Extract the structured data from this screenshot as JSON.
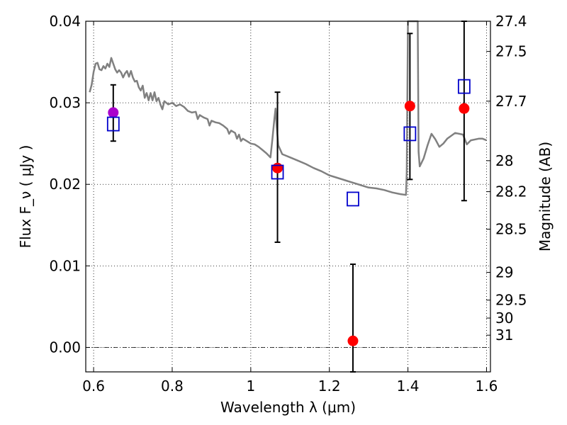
{
  "chart_data": {
    "type": "scatter",
    "title": "",
    "xlabel": "Wavelength  λ (μm)",
    "ylabel": "Flux  F_ν  ( μJy )",
    "y2label": "Magnitude (AB)",
    "xlim": [
      0.58,
      1.61
    ],
    "ylim": [
      -0.003,
      0.04
    ],
    "grid": true,
    "legend": "none",
    "x_ticks": [
      {
        "value": 0.6,
        "label": "0.6"
      },
      {
        "value": 0.8,
        "label": "0.8"
      },
      {
        "value": 1.0,
        "label": "1"
      },
      {
        "value": 1.2,
        "label": "1.2"
      },
      {
        "value": 1.4,
        "label": "1.4"
      },
      {
        "value": 1.6,
        "label": "1.6"
      }
    ],
    "y_ticks": [
      {
        "value": 0.0,
        "label": "0.00"
      },
      {
        "value": 0.01,
        "label": "0.01"
      },
      {
        "value": 0.02,
        "label": "0.02"
      },
      {
        "value": 0.03,
        "label": "0.03"
      },
      {
        "value": 0.04,
        "label": "0.04"
      }
    ],
    "magnitude_ticks": [
      {
        "flux": 0.04,
        "label": "27.4"
      },
      {
        "flux": 0.0363,
        "label": "27.5"
      },
      {
        "flux": 0.0302,
        "label": "27.7"
      },
      {
        "flux": 0.0229,
        "label": "28"
      },
      {
        "flux": 0.0191,
        "label": "28.2"
      },
      {
        "flux": 0.0145,
        "label": "28.5"
      },
      {
        "flux": 0.0092,
        "label": "29"
      },
      {
        "flux": 0.0058,
        "label": "29.5"
      },
      {
        "flux": 0.0036,
        "label": "30"
      },
      {
        "flux": 0.0015,
        "label": "31"
      }
    ],
    "zero_line": 0.0,
    "model_spectrum": {
      "color": "#808080",
      "points": [
        [
          0.59,
          0.0313
        ],
        [
          0.595,
          0.0322
        ],
        [
          0.6,
          0.0338
        ],
        [
          0.605,
          0.0348
        ],
        [
          0.61,
          0.0349
        ],
        [
          0.615,
          0.0341
        ],
        [
          0.62,
          0.034
        ],
        [
          0.625,
          0.0345
        ],
        [
          0.63,
          0.0342
        ],
        [
          0.635,
          0.0348
        ],
        [
          0.64,
          0.0344
        ],
        [
          0.645,
          0.0355
        ],
        [
          0.65,
          0.0348
        ],
        [
          0.655,
          0.0341
        ],
        [
          0.66,
          0.0337
        ],
        [
          0.665,
          0.034
        ],
        [
          0.67,
          0.0337
        ],
        [
          0.675,
          0.0331
        ],
        [
          0.68,
          0.0336
        ],
        [
          0.685,
          0.0339
        ],
        [
          0.69,
          0.0332
        ],
        [
          0.695,
          0.0339
        ],
        [
          0.7,
          0.0331
        ],
        [
          0.705,
          0.0326
        ],
        [
          0.71,
          0.0327
        ],
        [
          0.715,
          0.0319
        ],
        [
          0.72,
          0.0315
        ],
        [
          0.725,
          0.0321
        ],
        [
          0.73,
          0.0306
        ],
        [
          0.735,
          0.0312
        ],
        [
          0.74,
          0.0303
        ],
        [
          0.745,
          0.0312
        ],
        [
          0.75,
          0.0303
        ],
        [
          0.755,
          0.0313
        ],
        [
          0.76,
          0.0302
        ],
        [
          0.765,
          0.0306
        ],
        [
          0.77,
          0.0298
        ],
        [
          0.775,
          0.0292
        ],
        [
          0.78,
          0.0302
        ],
        [
          0.79,
          0.0298
        ],
        [
          0.8,
          0.03
        ],
        [
          0.81,
          0.0296
        ],
        [
          0.82,
          0.0298
        ],
        [
          0.83,
          0.0295
        ],
        [
          0.84,
          0.029
        ],
        [
          0.85,
          0.0288
        ],
        [
          0.86,
          0.0289
        ],
        [
          0.865,
          0.028
        ],
        [
          0.87,
          0.0285
        ],
        [
          0.88,
          0.0282
        ],
        [
          0.89,
          0.028
        ],
        [
          0.895,
          0.0272
        ],
        [
          0.9,
          0.0278
        ],
        [
          0.91,
          0.0276
        ],
        [
          0.92,
          0.0275
        ],
        [
          0.93,
          0.0272
        ],
        [
          0.94,
          0.0268
        ],
        [
          0.945,
          0.0262
        ],
        [
          0.95,
          0.0266
        ],
        [
          0.96,
          0.0263
        ],
        [
          0.965,
          0.0256
        ],
        [
          0.97,
          0.0261
        ],
        [
          0.975,
          0.0253
        ],
        [
          0.98,
          0.0256
        ],
        [
          0.99,
          0.0253
        ],
        [
          1.0,
          0.025
        ],
        [
          1.01,
          0.0249
        ],
        [
          1.02,
          0.0246
        ],
        [
          1.03,
          0.0242
        ],
        [
          1.04,
          0.0238
        ],
        [
          1.05,
          0.0233
        ],
        [
          1.055,
          0.0255
        ],
        [
          1.06,
          0.028
        ],
        [
          1.063,
          0.0293
        ],
        [
          1.066,
          0.0271
        ],
        [
          1.07,
          0.0248
        ],
        [
          1.08,
          0.0237
        ],
        [
          1.09,
          0.0235
        ],
        [
          1.1,
          0.0233
        ],
        [
          1.12,
          0.0229
        ],
        [
          1.14,
          0.0225
        ],
        [
          1.16,
          0.022
        ],
        [
          1.18,
          0.0216
        ],
        [
          1.2,
          0.0211
        ],
        [
          1.22,
          0.0208
        ],
        [
          1.24,
          0.0205
        ],
        [
          1.26,
          0.0202
        ],
        [
          1.28,
          0.0199
        ],
        [
          1.3,
          0.0196
        ],
        [
          1.32,
          0.0195
        ],
        [
          1.34,
          0.0193
        ],
        [
          1.36,
          0.019
        ],
        [
          1.38,
          0.0188
        ],
        [
          1.395,
          0.0187
        ],
        [
          1.397,
          0.0215
        ],
        [
          1.4,
          0.0405
        ],
        [
          1.425,
          0.0405
        ],
        [
          1.427,
          0.024
        ],
        [
          1.43,
          0.0222
        ],
        [
          1.44,
          0.0232
        ],
        [
          1.45,
          0.0248
        ],
        [
          1.46,
          0.0262
        ],
        [
          1.47,
          0.0255
        ],
        [
          1.48,
          0.0246
        ],
        [
          1.49,
          0.025
        ],
        [
          1.5,
          0.0256
        ],
        [
          1.52,
          0.0263
        ],
        [
          1.54,
          0.0261
        ],
        [
          1.55,
          0.0249
        ],
        [
          1.56,
          0.0254
        ],
        [
          1.58,
          0.0256
        ],
        [
          1.59,
          0.0256
        ],
        [
          1.6,
          0.0254
        ]
      ]
    },
    "series": [
      {
        "marker": "circle",
        "color": "#ff0000",
        "points": [
          {
            "x": 1.068,
            "y": 0.022,
            "yerr_low": 0.0129,
            "yerr_high": 0.0313
          },
          {
            "x": 1.26,
            "y": 0.0008,
            "yerr_low": -0.003,
            "yerr_high": 0.0102
          },
          {
            "x": 1.405,
            "y": 0.0296,
            "yerr_low": 0.0206,
            "yerr_high": 0.0385
          },
          {
            "x": 1.543,
            "y": 0.0293,
            "yerr_low": 0.018,
            "yerr_high": 0.04
          }
        ]
      },
      {
        "marker": "circle",
        "color": "#aa00cc",
        "points": [
          {
            "x": 0.65,
            "y": 0.0288,
            "yerr_low": 0.0253,
            "yerr_high": 0.0322
          }
        ]
      },
      {
        "marker": "square",
        "color": "#0000cc",
        "points": [
          {
            "x": 0.65,
            "y": 0.0274
          },
          {
            "x": 1.068,
            "y": 0.0215
          },
          {
            "x": 1.26,
            "y": 0.0182
          },
          {
            "x": 1.405,
            "y": 0.0262
          },
          {
            "x": 1.543,
            "y": 0.032
          }
        ]
      }
    ]
  }
}
